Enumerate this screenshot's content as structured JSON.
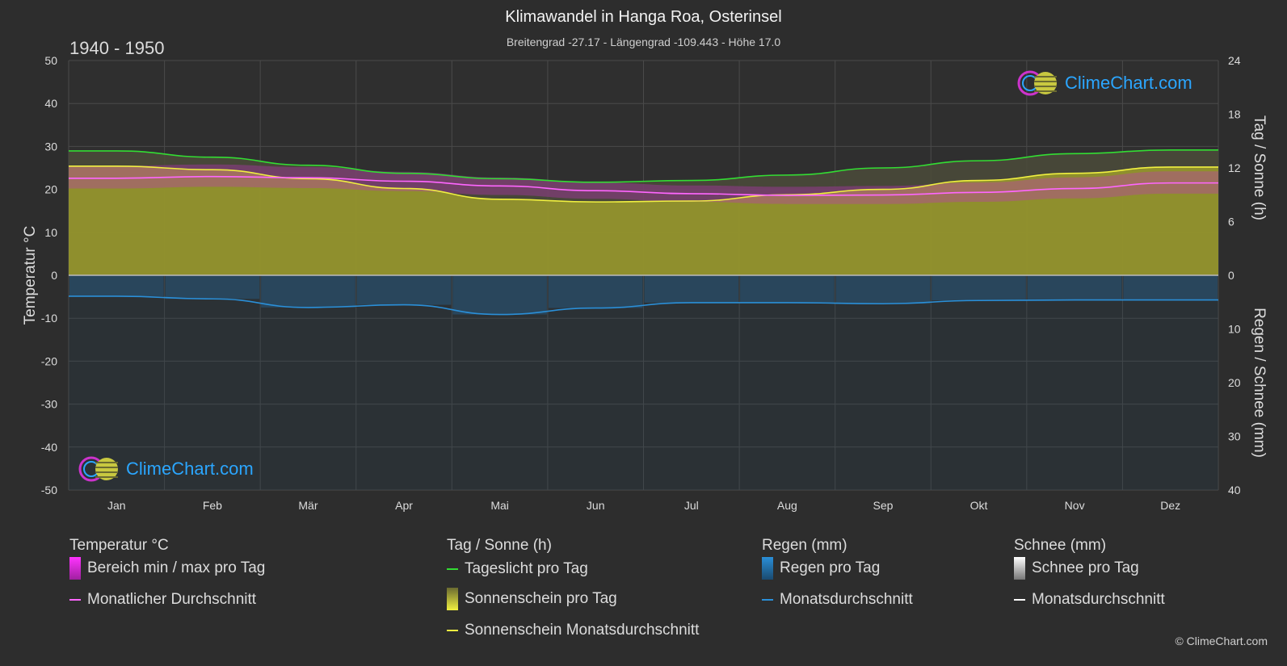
{
  "title": "Klimawandel in Hanga Roa, Osterinsel",
  "subtitle": "Breitengrad -27.17 - Längengrad -109.443 - Höhe 17.0",
  "period": "1940 - 1950",
  "brand": "ClimeChart.com",
  "copyright": "© ClimeChart.com",
  "legend": {
    "temperature": {
      "heading": "Temperatur °C",
      "items": [
        {
          "label": "Bereich min / max pro Tag",
          "icon": "magenta-range-swatch",
          "color": "#e040e0"
        },
        {
          "label": "Monatlicher Durchschnitt",
          "icon": "pink-line-swatch",
          "color": "#ff66ff"
        }
      ]
    },
    "sun": {
      "heading": "Tag / Sonne (h)",
      "items": [
        {
          "label": "Tageslicht pro Tag",
          "icon": "green-line-swatch",
          "color": "#33dd33"
        },
        {
          "label": "Sonnenschein pro Tag",
          "icon": "yellow-box-swatch",
          "color": "#d7d735"
        },
        {
          "label": "Sonnenschein Monatsdurchschnitt",
          "icon": "yellow-line-swatch",
          "color": "#f0f040"
        }
      ]
    },
    "rain": {
      "heading": "Regen (mm)",
      "items": [
        {
          "label": "Regen pro Tag",
          "icon": "blue-box-swatch",
          "color": "#2a8fd8"
        },
        {
          "label": "Monatsdurchschnitt",
          "icon": "blue-line-swatch",
          "color": "#2a8fd8"
        }
      ]
    },
    "snow": {
      "heading": "Schnee (mm)",
      "items": [
        {
          "label": "Schnee pro Tag",
          "icon": "white-box-swatch",
          "color": "#dddddd"
        },
        {
          "label": "Monatsdurchschnitt",
          "icon": "white-line-swatch",
          "color": "#ffffff"
        }
      ]
    }
  },
  "chart_data": {
    "type": "area",
    "categories": [
      "Jan",
      "Feb",
      "Mär",
      "Apr",
      "Mai",
      "Jun",
      "Jul",
      "Aug",
      "Sep",
      "Okt",
      "Nov",
      "Dez"
    ],
    "ylabel_left": "Temperatur °C",
    "ylabel_right_top": "Tag / Sonne (h)",
    "ylabel_right_bottom": "Regen / Schnee (mm)",
    "ylim_left": [
      -50,
      50
    ],
    "yticks_left": [
      50,
      40,
      30,
      20,
      10,
      0,
      -10,
      -20,
      -30,
      -40,
      -50
    ],
    "ylim_right_top": [
      0,
      24
    ],
    "yticks_right_top": [
      24,
      18,
      12,
      6,
      0
    ],
    "ylim_right_bottom": [
      0,
      40
    ],
    "yticks_right_bottom": [
      10,
      20,
      30,
      40
    ],
    "grid": true,
    "colors": {
      "daylight": "#33dd33",
      "sunshine_fill": "#9c9c2c",
      "sunshine_avg": "#f0f040",
      "temp_range": "#c030c0",
      "temp_avg": "#ff66ff",
      "rain": "#2a7ab8",
      "rain_avg": "#2a8fd8",
      "grid": "#4a4a4a",
      "zero": "#bbbbbb"
    },
    "series": [
      {
        "name": "Tageslicht pro Tag",
        "unit": "h",
        "values": [
          13.9,
          13.2,
          12.3,
          11.4,
          10.8,
          10.4,
          10.6,
          11.2,
          12.0,
          12.8,
          13.6,
          14.0
        ]
      },
      {
        "name": "Sonnenschein Monatsdurchschnitt",
        "unit": "h",
        "values": [
          12.2,
          11.8,
          10.8,
          9.7,
          8.5,
          8.2,
          8.3,
          9.0,
          9.6,
          10.6,
          11.4,
          12.1
        ]
      },
      {
        "name": "Monatlicher Durchschnitt",
        "unit": "°C",
        "values": [
          22.6,
          23.0,
          22.7,
          21.9,
          20.8,
          19.7,
          19.0,
          18.6,
          18.7,
          19.3,
          20.2,
          21.5
        ]
      },
      {
        "name": "Temperatur max",
        "unit": "°C",
        "values": [
          25.5,
          25.8,
          25.2,
          24.1,
          22.8,
          21.6,
          20.9,
          20.6,
          20.8,
          21.6,
          22.8,
          24.2
        ]
      },
      {
        "name": "Temperatur min",
        "unit": "°C",
        "values": [
          20.2,
          20.6,
          20.3,
          19.6,
          18.7,
          17.8,
          17.1,
          16.6,
          16.6,
          17.1,
          17.9,
          19.0
        ]
      },
      {
        "name": "Regen Monatsdurchschnitt",
        "unit": "mm",
        "values": [
          3.9,
          4.4,
          6.0,
          5.5,
          7.3,
          6.1,
          5.1,
          5.1,
          5.3,
          4.7,
          4.6,
          4.6
        ]
      }
    ]
  }
}
